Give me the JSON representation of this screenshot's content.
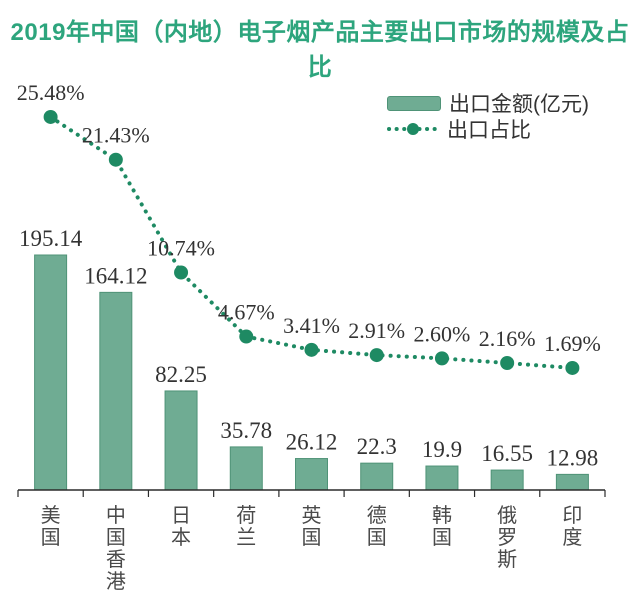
{
  "title": "2019年中国（内地）电子烟产品主要出口市场的规模及占比",
  "legend": {
    "amount_label": "出口金额(亿元)",
    "share_label": "出口占比"
  },
  "colors": {
    "title": "#2DA57D",
    "bar_fill": "#6FAC93",
    "bar_border": "#4F9377",
    "line": "#1E8A63",
    "axis": "#2B2B2B",
    "value_label": "#333333",
    "category_label": "#4A4A4A"
  },
  "chart_data": {
    "type": "bar",
    "title": "2019年中国（内地）电子烟产品主要出口市场的规模及占比",
    "categories": [
      "美国",
      "中国香港",
      "日本",
      "荷兰",
      "英国",
      "德国",
      "韩国",
      "俄罗斯",
      "印度"
    ],
    "series": [
      {
        "name": "出口金额(亿元)",
        "type": "bar",
        "values": [
          195.14,
          164.12,
          82.25,
          35.78,
          26.12,
          22.3,
          19.9,
          16.55,
          12.98
        ],
        "value_labels": [
          "195.14",
          "164.12",
          "82.25",
          "35.78",
          "26.12",
          "22.3",
          "19.9",
          "16.55",
          "12.98"
        ]
      },
      {
        "name": "出口占比",
        "type": "line",
        "values": [
          25.48,
          21.43,
          10.74,
          4.67,
          3.41,
          2.91,
          2.6,
          2.16,
          1.69
        ],
        "value_labels": [
          "25.48%",
          "21.43%",
          "10.74%",
          "4.67%",
          "3.41%",
          "2.91%",
          "2.60%",
          "2.16%",
          "1.69%"
        ]
      }
    ],
    "xlabel": "",
    "ylabel": "",
    "bar_axis_range": [
      0,
      220
    ],
    "line_axis_range": [
      0,
      30
    ],
    "grid": false,
    "legend_position": "top-right",
    "axes_shown": "x-only"
  }
}
